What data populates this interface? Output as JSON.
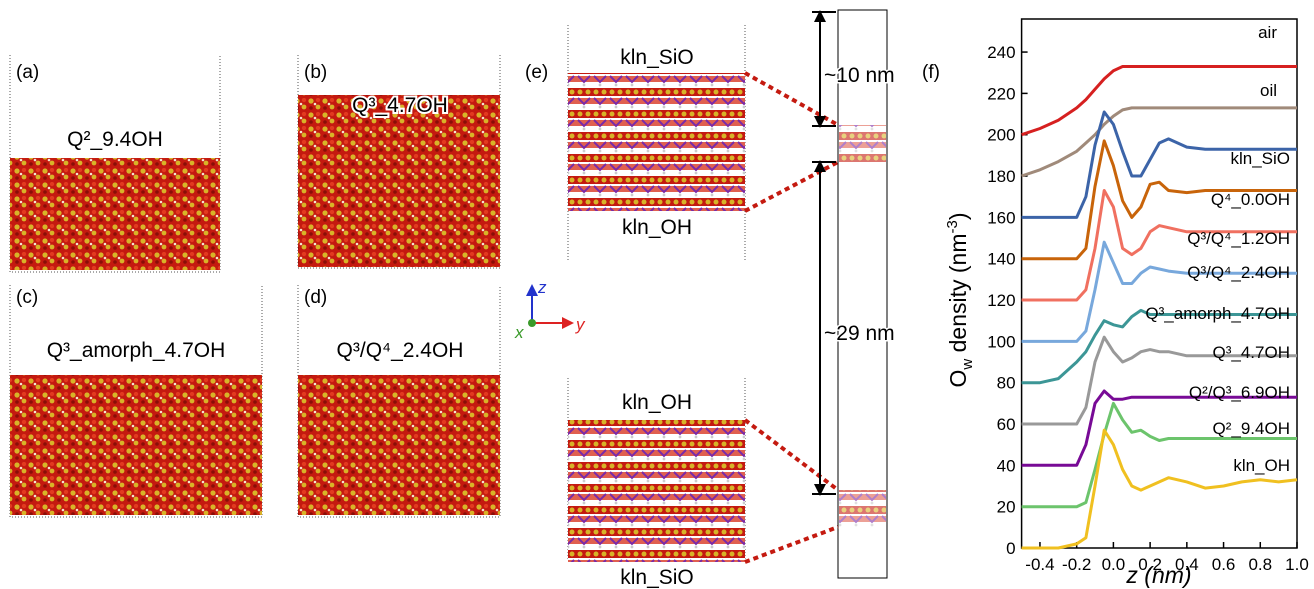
{
  "panels": [
    {
      "label": "(a)",
      "title": "Q²_9.4OH"
    },
    {
      "label": "(b)",
      "title": "Q³_4.7OH"
    },
    {
      "label": "(c)",
      "title": "Q³_amorph_4.7OH"
    },
    {
      "label": "(d)",
      "title": "Q³/Q⁴_2.4OH"
    }
  ],
  "panel_e": {
    "label": "(e)",
    "upper_top": "kln_SiO",
    "upper_bottom": "kln_OH",
    "lower_top": "kln_OH",
    "lower_bottom": "kln_SiO",
    "gap_upper": "~10 nm",
    "gap_lower": "~29 nm"
  },
  "axes_triad": {
    "z": "z",
    "y": "y",
    "x": "x"
  },
  "chart_data": {
    "type": "line",
    "panel_label": "(f)",
    "xlabel": "z (nm)",
    "ylabel": [
      "O",
      "w",
      " density (nm",
      "-3",
      ")"
    ],
    "x": [
      -0.5,
      -0.4,
      -0.3,
      -0.2,
      -0.15,
      -0.1,
      -0.05,
      0,
      0.05,
      0.1,
      0.15,
      0.2,
      0.25,
      0.3,
      0.4,
      0.5,
      0.6,
      0.7,
      0.8,
      0.9,
      1.0
    ],
    "xlim": [
      -0.5,
      1.0
    ],
    "xticks": [
      -0.4,
      -0.2,
      {
        "value": 0,
        "label": "0.0"
      },
      0.2,
      0.4,
      0.6,
      0.8,
      {
        "value": 1,
        "label": "1.0"
      }
    ],
    "ylim": [
      0,
      256
    ],
    "yticks": [
      0,
      20,
      40,
      60,
      80,
      100,
      120,
      140,
      160,
      180,
      200,
      220,
      240
    ],
    "series": [
      {
        "name": "air",
        "color": "#d62020",
        "values": [
          200,
          203,
          207,
          213,
          217,
          222,
          227,
          231,
          233,
          233,
          233,
          233,
          233,
          233,
          233,
          233,
          233,
          233,
          233,
          233,
          233
        ]
      },
      {
        "name": "oil",
        "color": "#a08a7a",
        "values": [
          180,
          183,
          187,
          192,
          196,
          200,
          205,
          209,
          212,
          213,
          213,
          213,
          213,
          213,
          213,
          213,
          213,
          213,
          213,
          213,
          213
        ]
      },
      {
        "name": "kln_SiO",
        "color": "#3c64a8",
        "values": [
          160,
          160,
          160,
          160,
          170,
          195,
          211,
          205,
          192,
          180,
          180,
          188,
          196,
          198,
          194,
          193,
          193,
          193,
          193,
          193,
          193
        ]
      },
      {
        "name": "Q⁴_0.0OH",
        "color": "#c8640a",
        "values": [
          140,
          140,
          140,
          140,
          145,
          175,
          197,
          185,
          168,
          160,
          165,
          176,
          177,
          173,
          172,
          173,
          173,
          173,
          173,
          173,
          173
        ]
      },
      {
        "name": "Q³/Q⁴_1.2OH",
        "color": "#f07060",
        "values": [
          120,
          120,
          120,
          120,
          125,
          145,
          173,
          165,
          145,
          142,
          145,
          153,
          156,
          155,
          153,
          153,
          153,
          153,
          153,
          153,
          153
        ]
      },
      {
        "name": "Q³/Q⁴_2.4OH",
        "color": "#78a8dc",
        "values": [
          100,
          100,
          100,
          100,
          105,
          125,
          148,
          138,
          128,
          128,
          133,
          136,
          135,
          134,
          133,
          133,
          133,
          133,
          133,
          133,
          133
        ]
      },
      {
        "name": "Q³_amorph_4.7OH",
        "color": "#3c9696",
        "values": [
          80,
          80,
          82,
          90,
          95,
          103,
          110,
          108,
          107,
          112,
          115,
          113,
          113,
          113,
          113,
          113,
          113,
          113,
          113,
          113,
          113
        ]
      },
      {
        "name": "Q³_4.7OH",
        "color": "#999999",
        "values": [
          60,
          60,
          60,
          60,
          68,
          90,
          102,
          95,
          90,
          92,
          95,
          96,
          95,
          95,
          93,
          93,
          93,
          93,
          93,
          93,
          93
        ]
      },
      {
        "name": "Q²/Q³_6.9OH",
        "color": "#780a96",
        "values": [
          40,
          40,
          40,
          40,
          50,
          70,
          76,
          72,
          72,
          73,
          73,
          73,
          73,
          73,
          73,
          73,
          73,
          73,
          73,
          73,
          73
        ]
      },
      {
        "name": "Q²_9.4OH",
        "color": "#6cc46c",
        "values": [
          20,
          20,
          20,
          20,
          22,
          38,
          55,
          70,
          62,
          56,
          57,
          54,
          52,
          53,
          53,
          53,
          53,
          53,
          53,
          53,
          53
        ]
      },
      {
        "name": "kln_OH",
        "color": "#f0c020",
        "values": [
          0,
          0,
          0,
          2,
          5,
          30,
          57,
          50,
          38,
          30,
          28,
          30,
          32,
          34,
          32,
          29,
          30,
          32,
          33,
          32,
          33
        ]
      }
    ]
  }
}
